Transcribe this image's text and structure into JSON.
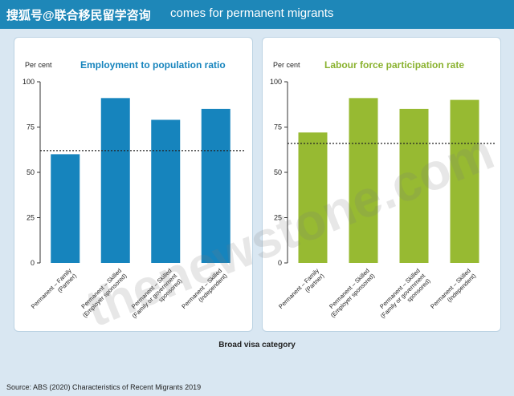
{
  "header": {
    "title": "搜狐号@联合移民留学咨询",
    "title_suffix": "comes for permanent migrants"
  },
  "watermark": {
    "text": "thenewstone.com"
  },
  "chart_data": [
    {
      "type": "bar",
      "title": "Employment to population ratio",
      "ylabel": "Per cent",
      "xlabel": "Broad visa category",
      "ylim": [
        0,
        100
      ],
      "yticks": [
        0,
        25,
        50,
        75,
        100
      ],
      "categories": [
        "Permanent – Family (Partner)",
        "Permanent – Skilled (Employer sponsored)",
        "Permanent – Skilled (Family or government sponsored)",
        "Permanent – Skilled (Independent)"
      ],
      "category_lines": [
        [
          "Permanent – Family",
          "(Partner)"
        ],
        [
          "Permanent – Skilled",
          "(Employer sponsored)"
        ],
        [
          "Permanent – Skilled",
          "(Family or government",
          "sponsored)"
        ],
        [
          "Permanent – Skilled",
          "(Independent)"
        ]
      ],
      "values": [
        60,
        91,
        79,
        85
      ],
      "reference_line": 62,
      "color": "#1684bd"
    },
    {
      "type": "bar",
      "title": "Labour force participation rate",
      "ylabel": "Per cent",
      "xlabel": "Broad visa category",
      "ylim": [
        0,
        100
      ],
      "yticks": [
        0,
        25,
        50,
        75,
        100
      ],
      "categories": [
        "Permanent – Family (Partner)",
        "Permanent – Skilled (Employer sponsored)",
        "Permanent – Skilled (Family or government sponsored)",
        "Permanent – Skilled (Independent)"
      ],
      "category_lines": [
        [
          "Permanent – Family",
          "(Partner)"
        ],
        [
          "Permanent – Skilled",
          "(Employer sponsored)"
        ],
        [
          "Permanent – Skilled",
          "(Family or government",
          "sponsored)"
        ],
        [
          "Permanent – Skilled",
          "(Independent)"
        ]
      ],
      "values": [
        72,
        91,
        85,
        90
      ],
      "reference_line": 66,
      "color": "#97ba32"
    }
  ],
  "xaxis_title": "Broad visa category",
  "source": "Source: ABS (2020) Characteristics of Recent Migrants 2019"
}
